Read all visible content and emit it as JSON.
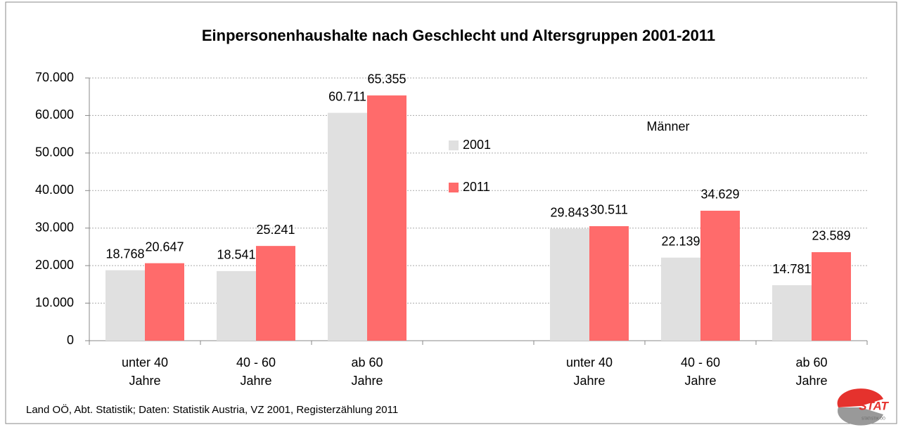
{
  "chart_data": {
    "type": "bar",
    "title": "Einpersonenhaushalte nach Geschlecht und Altersgruppen 2001-2011",
    "annotation": "Männer",
    "source": "Land OÖ, Abt. Statistik; Daten: Statistik Austria, VZ 2001, Registerzählung 2011",
    "logo": {
      "text": "STAT",
      "subtext": "STATISTIK OÖ"
    },
    "categories": [
      "unter 40 Jahre",
      "40 - 60 Jahre",
      "ab 60 Jahre",
      null,
      "unter 40 Jahre",
      "40 - 60 Jahre",
      "ab 60 Jahre"
    ],
    "series": [
      {
        "name": "2001",
        "color": "#e0e0e0",
        "values": [
          18768,
          18541,
          60711,
          null,
          29843,
          22139,
          14781
        ],
        "value_labels": [
          "18.768",
          "18.541",
          "60.711",
          null,
          "29.843",
          "22.139",
          "14.781"
        ]
      },
      {
        "name": "2011",
        "color": "#ff6b6b",
        "values": [
          20647,
          25241,
          65355,
          null,
          30511,
          34629,
          23589
        ],
        "value_labels": [
          "20.647",
          "25.241",
          "65.355",
          null,
          "30.511",
          "34.629",
          "23.589"
        ]
      }
    ],
    "ylim": [
      0,
      70000
    ],
    "yticks": [
      0,
      {
        "value": 10000,
        "label": "10.000"
      },
      {
        "value": 20000,
        "label": "20.000"
      },
      {
        "value": 30000,
        "label": "30.000"
      },
      {
        "value": 40000,
        "label": "40.000"
      },
      {
        "value": 50000,
        "label": "50.000"
      },
      {
        "value": 60000,
        "label": "60.000"
      },
      {
        "value": 70000,
        "label": "70.000"
      }
    ],
    "grid": true,
    "legend": "center"
  }
}
